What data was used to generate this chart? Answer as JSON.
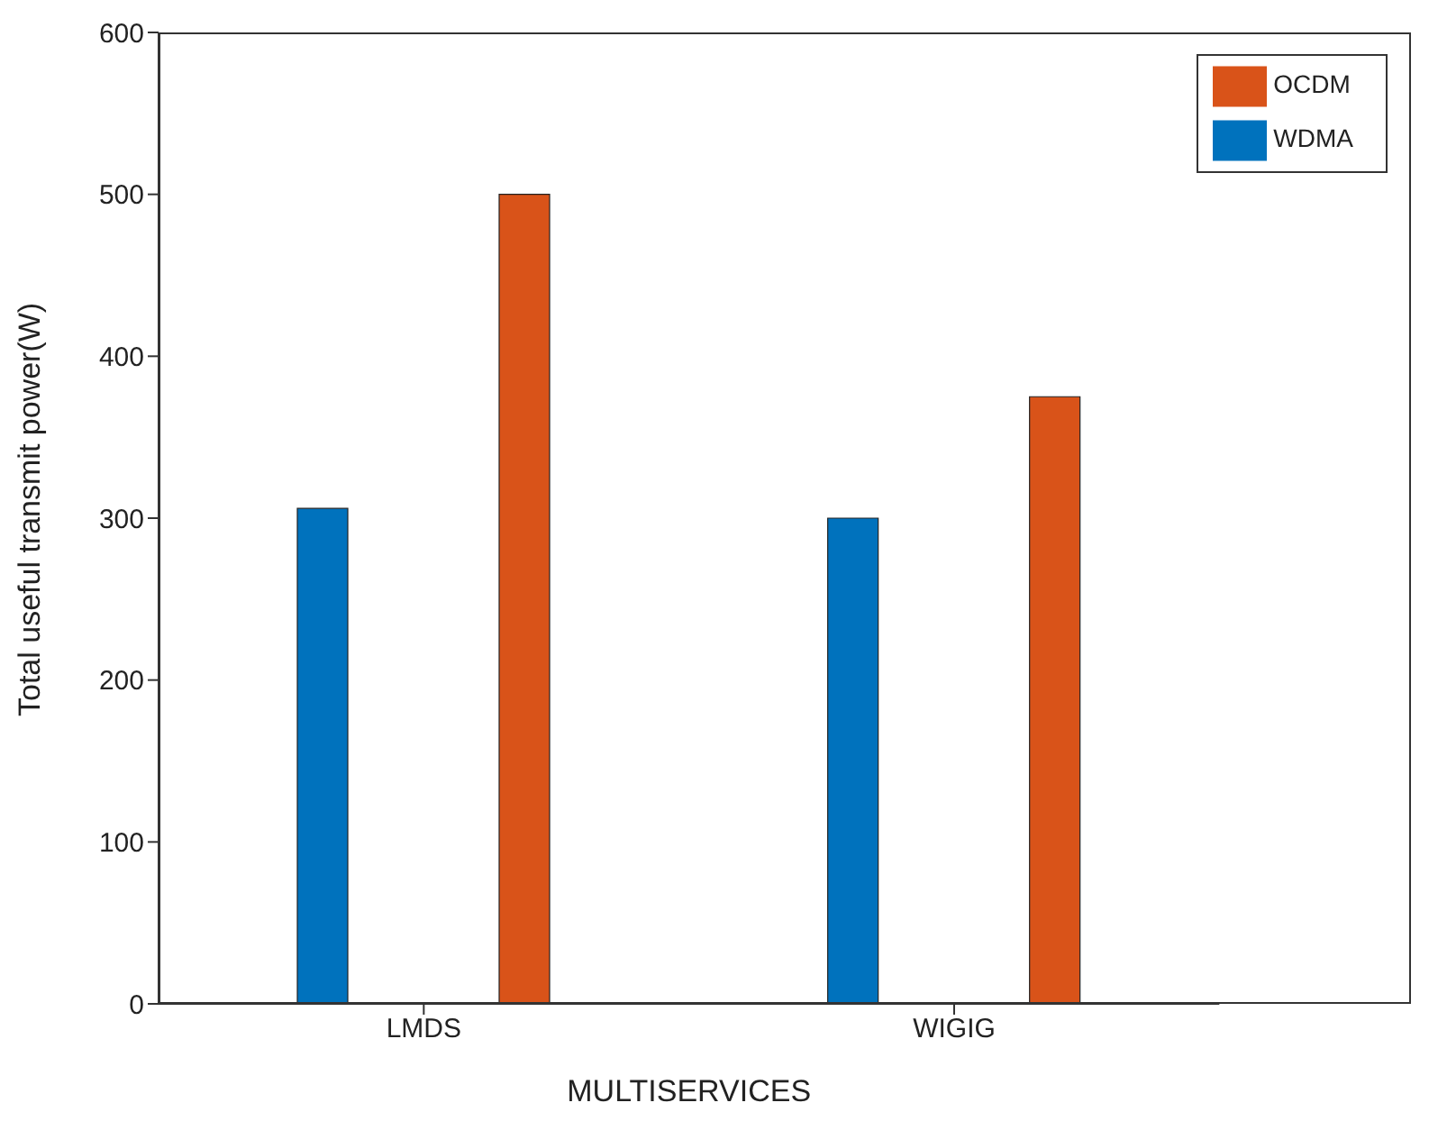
{
  "chart_data": {
    "type": "bar",
    "xlabel": "MULTISERVICES",
    "ylabel": "Total useful transmit power(W)",
    "categories": [
      "LMDS",
      "WIGIG"
    ],
    "series": [
      {
        "name": "WDMA",
        "color": "#0072bd",
        "values": [
          306,
          300
        ]
      },
      {
        "name": "OCDM",
        "color": "#d95319",
        "values": [
          500,
          375
        ]
      }
    ],
    "ylim": [
      0,
      600
    ],
    "yticks": [
      0,
      100,
      200,
      300,
      400,
      500,
      600
    ],
    "grid": false,
    "legend": "top right"
  }
}
